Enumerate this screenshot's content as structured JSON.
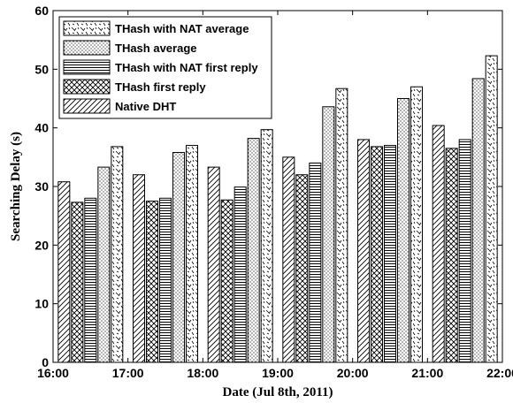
{
  "chart_data": {
    "type": "bar",
    "xlabel": "Date (Jul 8th, 2011)",
    "ylabel": "Searching Delay (s)",
    "xlim": [
      16,
      22
    ],
    "ylim": [
      0,
      60
    ],
    "x_ticks": [
      "16:00",
      "17:00",
      "18:00",
      "19:00",
      "20:00",
      "21:00",
      "22:00"
    ],
    "y_ticks": [
      "0",
      "10",
      "20",
      "30",
      "40",
      "50",
      "60"
    ],
    "grid": false,
    "legend_position": "top-left",
    "group_centers": [
      16.5,
      17.5,
      18.5,
      19.5,
      20.5,
      21.5
    ],
    "series": [
      {
        "name": "Native DHT",
        "pattern": "diag-right",
        "values": [
          30.8,
          32.0,
          33.3,
          35.0,
          38.0,
          40.4
        ]
      },
      {
        "name": "THash first reply",
        "pattern": "crosshatch",
        "values": [
          27.3,
          27.5,
          27.7,
          32.0,
          36.8,
          36.5
        ]
      },
      {
        "name": "THash with NAT first reply",
        "pattern": "horizontal",
        "values": [
          28.0,
          28.0,
          29.9,
          34.0,
          37.0,
          38.0
        ]
      },
      {
        "name": "THash average",
        "pattern": "dots",
        "values": [
          33.3,
          35.8,
          38.2,
          43.6,
          45.0,
          48.4
        ]
      },
      {
        "name": "THash with NAT average",
        "pattern": "dash-mix",
        "values": [
          36.8,
          37.0,
          39.7,
          46.7,
          47.0,
          52.3
        ]
      }
    ],
    "legend_order": [
      "THash with NAT average",
      "THash average",
      "THash with NAT first reply",
      "THash first reply",
      "Native DHT"
    ]
  }
}
